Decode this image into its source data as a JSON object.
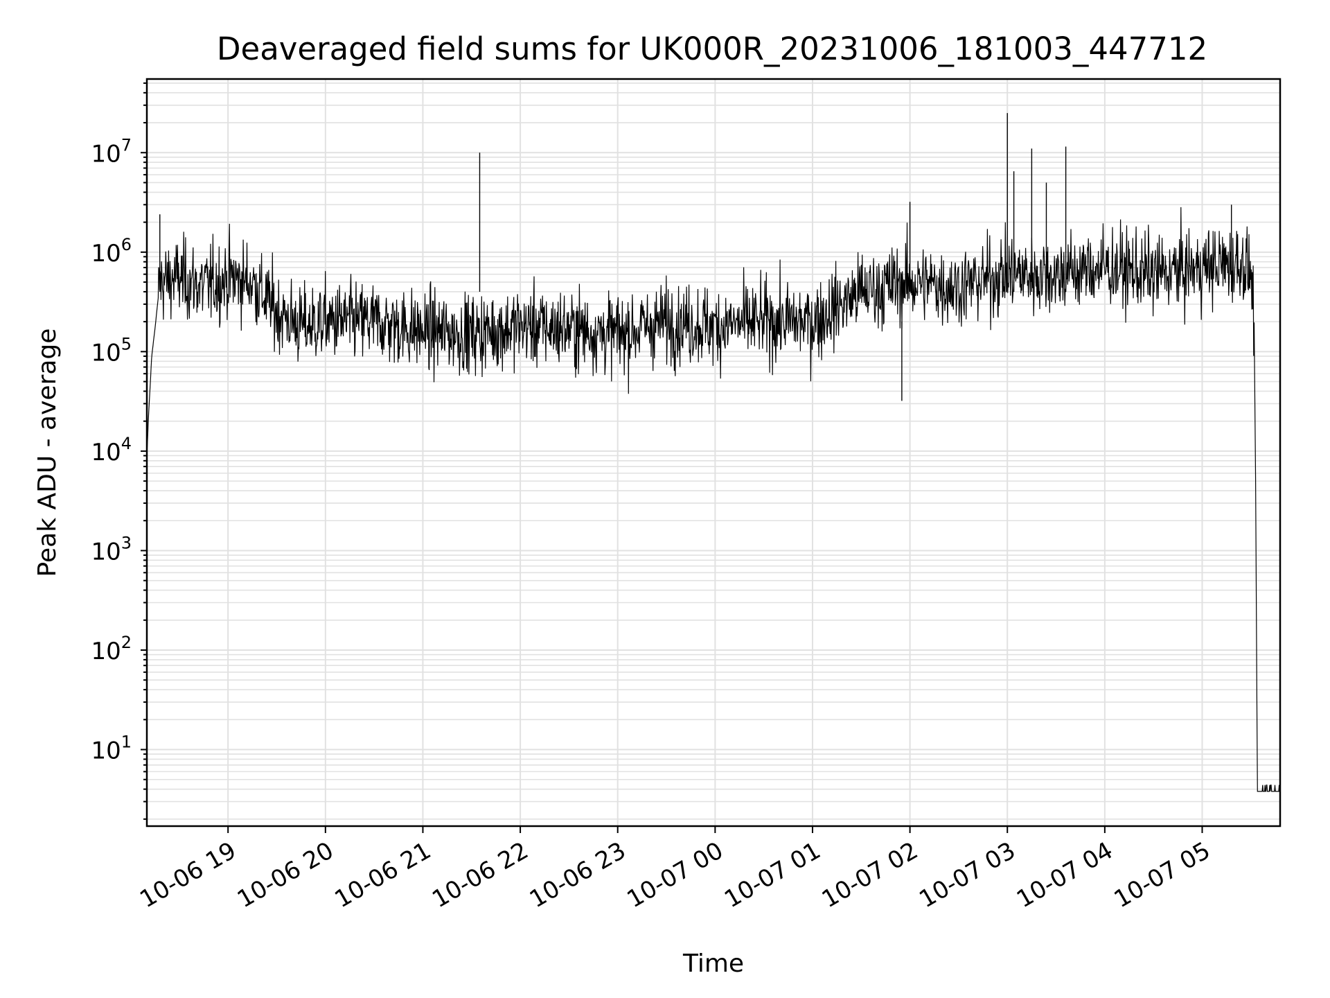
{
  "chart_data": {
    "type": "line",
    "title": "Deaveraged field sums for UK000R_20231006_181003_447712",
    "xlabel": "Time",
    "ylabel": "Peak ADU - average",
    "yscale": "log",
    "ylim": [
      1.7,
      55000000
    ],
    "xlim": [
      "2023-10-06 18:10",
      "2023-10-07 05:48"
    ],
    "grid": true,
    "x_ticks": [
      "10-06 19",
      "10-06 20",
      "10-06 21",
      "10-06 22",
      "10-06 23",
      "10-07 00",
      "10-07 01",
      "10-07 02",
      "10-07 03",
      "10-07 04",
      "10-07 05"
    ],
    "x_tick_times": [
      "2023-10-06 19:00",
      "2023-10-06 20:00",
      "2023-10-06 21:00",
      "2023-10-06 22:00",
      "2023-10-06 23:00",
      "2023-10-07 00:00",
      "2023-10-07 01:00",
      "2023-10-07 02:00",
      "2023-10-07 03:00",
      "2023-10-07 04:00",
      "2023-10-07 05:00"
    ],
    "y_ticks": [
      {
        "value": 10,
        "base": "10",
        "exp": "1"
      },
      {
        "value": 100,
        "base": "10",
        "exp": "2"
      },
      {
        "value": 1000,
        "base": "10",
        "exp": "3"
      },
      {
        "value": 10000,
        "base": "10",
        "exp": "4"
      },
      {
        "value": 100000,
        "base": "10",
        "exp": "5"
      },
      {
        "value": 1000000,
        "base": "10",
        "exp": "6"
      },
      {
        "value": 10000000,
        "base": "10",
        "exp": "7"
      }
    ],
    "series": [
      {
        "color": "#000000",
        "x": [
          "2023-10-06 18:10",
          "2023-10-06 18:11",
          "2023-10-06 18:13",
          "2023-10-06 18:15",
          "2023-10-06 18:18",
          "2023-10-06 18:30",
          "2023-10-06 18:45",
          "2023-10-06 19:00",
          "2023-10-06 19:15",
          "2023-10-06 19:30",
          "2023-10-06 19:45",
          "2023-10-06 20:00",
          "2023-10-06 20:30",
          "2023-10-06 21:00",
          "2023-10-06 21:30",
          "2023-10-06 22:00",
          "2023-10-06 22:30",
          "2023-10-06 23:00",
          "2023-10-06 23:30",
          "2023-10-07 00:00",
          "2023-10-07 00:30",
          "2023-10-07 01:00",
          "2023-10-07 01:30",
          "2023-10-07 02:00",
          "2023-10-07 02:30",
          "2023-10-07 03:00",
          "2023-10-07 03:30",
          "2023-10-07 04:00",
          "2023-10-07 04:30",
          "2023-10-07 05:00",
          "2023-10-07 05:25",
          "2023-10-07 05:30",
          "2023-10-07 05:32",
          "2023-10-07 05:33",
          "2023-10-07 05:34",
          "2023-10-07 05:48"
        ],
        "y": [
          9000,
          22000,
          90000,
          170000,
          500000,
          550000,
          450000,
          550000,
          500000,
          250000,
          180000,
          200000,
          200000,
          160000,
          150000,
          180000,
          170000,
          150000,
          200000,
          180000,
          200000,
          200000,
          400000,
          500000,
          450000,
          600000,
          600000,
          700000,
          600000,
          700000,
          800000,
          600000,
          200000,
          3000,
          3.8,
          3.8
        ]
      }
    ],
    "spikes": [
      {
        "x": "2023-10-06 18:18",
        "y": 2400000
      },
      {
        "x": "2023-10-06 21:35",
        "y": 10000000
      },
      {
        "x": "2023-10-07 03:00",
        "y": 25000000
      },
      {
        "x": "2023-10-07 03:04",
        "y": 6500000
      },
      {
        "x": "2023-10-07 03:15",
        "y": 11000000
      },
      {
        "x": "2023-10-07 03:24",
        "y": 5000000
      },
      {
        "x": "2023-10-07 03:36",
        "y": 11500000
      },
      {
        "x": "2023-10-07 05:18",
        "y": 3000000
      },
      {
        "x": "2023-10-07 02:00",
        "y": 3200000
      },
      {
        "x": "2023-10-07 01:55",
        "y": 32000
      }
    ]
  }
}
